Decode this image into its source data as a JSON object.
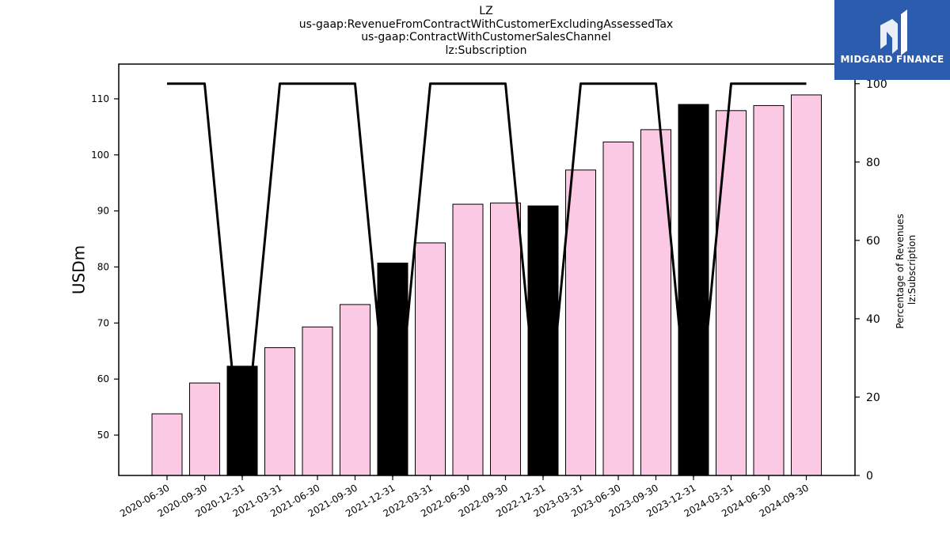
{
  "titles": {
    "line1": "LZ",
    "line2": "us-gaap:RevenueFromContractWithCustomerExcludingAssessedTax",
    "line3": "us-gaap:ContractWithCustomerSalesChannel",
    "line4": "lz:Subscription"
  },
  "logo": {
    "text": "MIDGARD FINANCE",
    "background": "#2b5cad"
  },
  "chart_data": {
    "type": "bar",
    "categories": [
      "2020-06-30",
      "2020-09-30",
      "2020-12-31",
      "2021-03-31",
      "2021-06-30",
      "2021-09-30",
      "2021-12-31",
      "2022-03-31",
      "2022-06-30",
      "2022-09-30",
      "2022-12-31",
      "2023-03-31",
      "2023-06-30",
      "2023-09-30",
      "2023-12-31",
      "2024-03-31",
      "2024-06-30",
      "2024-09-30"
    ],
    "values": [
      53.8,
      59.3,
      62.3,
      65.6,
      69.3,
      73.3,
      80.7,
      84.3,
      91.2,
      91.4,
      90.9,
      97.3,
      102.3,
      104.5,
      109.0,
      107.9,
      108.8,
      110.7
    ],
    "bar_colors": [
      "#fbc9e4",
      "#fbc9e4",
      "#000000",
      "#fbc9e4",
      "#fbc9e4",
      "#fbc9e4",
      "#000000",
      "#fbc9e4",
      "#fbc9e4",
      "#fbc9e4",
      "#000000",
      "#fbc9e4",
      "#fbc9e4",
      "#fbc9e4",
      "#000000",
      "#fbc9e4",
      "#fbc9e4",
      "#fbc9e4"
    ],
    "ylabel": "USDm",
    "ylim": [
      42.8,
      116.2
    ],
    "yticks": [
      50,
      60,
      70,
      80,
      90,
      100,
      110
    ],
    "line_series": {
      "values": [
        100,
        100,
        0,
        100,
        100,
        100,
        0,
        100,
        100,
        100,
        0,
        100,
        100,
        100,
        0,
        100,
        100,
        100
      ],
      "color": "#000000"
    },
    "y2label_line1": "Percentage of Revenues",
    "y2label_line2": "lz:Subscription",
    "y2lim": [
      0,
      105
    ],
    "y2ticks": [
      0,
      20,
      40,
      60,
      80,
      100
    ],
    "grid": false
  }
}
